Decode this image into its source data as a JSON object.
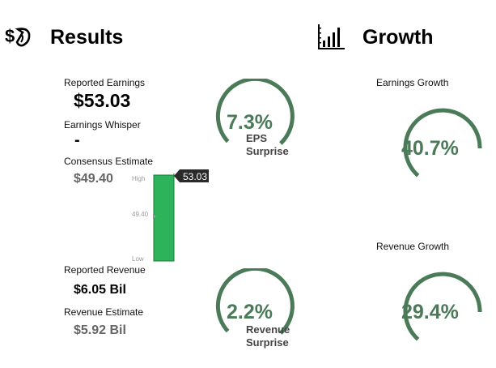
{
  "results": {
    "title": "Results",
    "icon": "money-bag-icon",
    "reported_earnings": {
      "label": "Reported Earnings",
      "value": "$53.03"
    },
    "earnings_whisper": {
      "label": "Earnings Whisper",
      "value": "-"
    },
    "consensus_estimate": {
      "label": "Consensus Estimate",
      "value": "$49.40"
    },
    "range_chart": {
      "high_label": "High",
      "low_label": "Low",
      "mid_label": "49.40",
      "reported_label": "53.03",
      "bar_color": "#2db35a"
    },
    "reported_revenue": {
      "label": "Reported Revenue",
      "value": "$6.05 Bil"
    },
    "revenue_estimate": {
      "label": "Revenue Estimate",
      "value": "$5.92 Bil"
    },
    "eps_surprise": {
      "value": "7.3%",
      "line1": "EPS",
      "line2": "Surprise"
    },
    "revenue_surprise": {
      "value": "2.2%",
      "line1": "Revenue",
      "line2": "Surprise"
    }
  },
  "growth": {
    "title": "Growth",
    "icon": "bar-chart-icon",
    "earnings_growth": {
      "label": "Earnings Growth",
      "value": "40.7%"
    },
    "revenue_growth": {
      "label": "Revenue Growth",
      "value": "29.4%"
    }
  },
  "colors": {
    "gauge": "#4a7a58",
    "gauge_text": "#4a7a58",
    "bar": "#2db35a"
  }
}
